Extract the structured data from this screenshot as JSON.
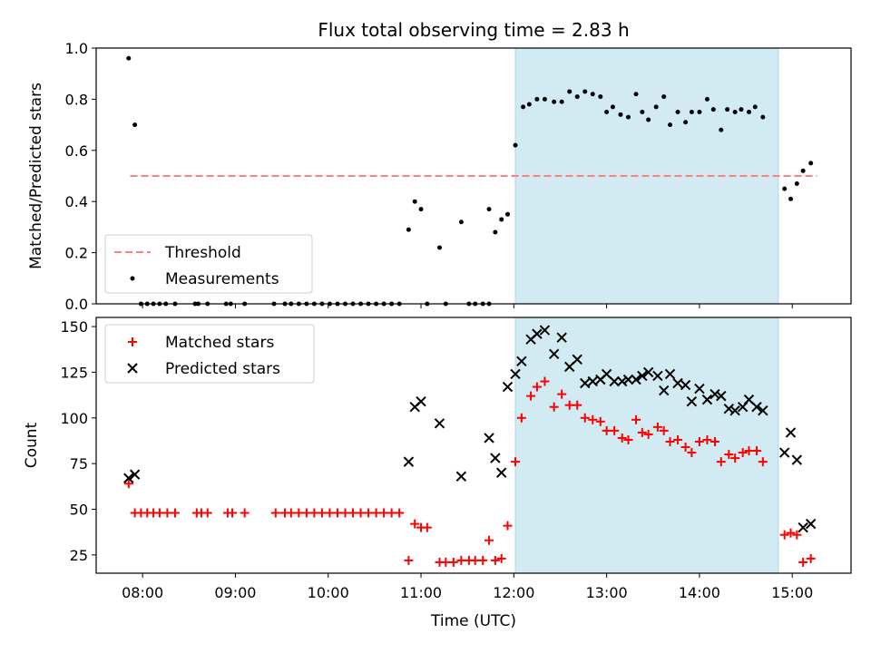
{
  "title": "Flux total observing time = 2.83 h",
  "xlabel": "Time (UTC)",
  "x_ticks": [
    "08:00",
    "09:00",
    "10:00",
    "11:00",
    "12:00",
    "13:00",
    "14:00",
    "15:00"
  ],
  "shaded_window": {
    "start": "12:01",
    "end": "14:51",
    "color": "#add8e6"
  },
  "chart_data": [
    {
      "type": "scatter",
      "ylabel": "Matched/Predicted stars",
      "ylim": [
        0,
        1.0
      ],
      "y_ticks": [
        "0.0",
        "0.2",
        "0.4",
        "0.6",
        "0.8",
        "1.0"
      ],
      "legend": {
        "position": "lower-left",
        "entries": [
          "Threshold",
          "Measurements"
        ]
      },
      "threshold": {
        "name": "Threshold",
        "value": 0.5,
        "x_start": "07:52",
        "x_end": "15:16",
        "color": "#ff7f7f",
        "style": "dashed"
      },
      "series": [
        {
          "name": "Measurements",
          "color": "#000000",
          "points": [
            [
              "07:51",
              0.96
            ],
            [
              "07:55",
              0.7
            ],
            [
              "07:59",
              0.0
            ],
            [
              "08:03",
              0.0
            ],
            [
              "08:07",
              0.0
            ],
            [
              "08:11",
              0.0
            ],
            [
              "08:15",
              0.0
            ],
            [
              "08:21",
              0.0
            ],
            [
              "08:34",
              0.0
            ],
            [
              "08:36",
              0.0
            ],
            [
              "08:42",
              0.0
            ],
            [
              "08:54",
              0.0
            ],
            [
              "08:57",
              0.0
            ],
            [
              "09:06",
              0.0
            ],
            [
              "09:25",
              0.0
            ],
            [
              "09:32",
              0.0
            ],
            [
              "09:36",
              0.0
            ],
            [
              "09:41",
              0.0
            ],
            [
              "09:46",
              0.0
            ],
            [
              "09:51",
              0.0
            ],
            [
              "09:56",
              0.0
            ],
            [
              "10:01",
              0.0
            ],
            [
              "10:06",
              0.0
            ],
            [
              "10:11",
              0.0
            ],
            [
              "10:16",
              0.0
            ],
            [
              "10:21",
              0.0
            ],
            [
              "10:26",
              0.0
            ],
            [
              "10:31",
              0.0
            ],
            [
              "10:36",
              0.0
            ],
            [
              "10:41",
              0.0
            ],
            [
              "10:46",
              0.0
            ],
            [
              "10:52",
              0.29
            ],
            [
              "10:56",
              0.4
            ],
            [
              "11:00",
              0.37
            ],
            [
              "11:04",
              0.0
            ],
            [
              "11:12",
              0.22
            ],
            [
              "11:16",
              0.0
            ],
            [
              "11:26",
              0.32
            ],
            [
              "11:31",
              0.0
            ],
            [
              "11:35",
              0.0
            ],
            [
              "11:40",
              0.0
            ],
            [
              "11:44",
              0.0
            ],
            [
              "11:44",
              0.37
            ],
            [
              "11:48",
              0.28
            ],
            [
              "11:52",
              0.33
            ],
            [
              "11:56",
              0.35
            ],
            [
              "12:01",
              0.62
            ],
            [
              "12:06",
              0.77
            ],
            [
              "12:10",
              0.78
            ],
            [
              "12:15",
              0.8
            ],
            [
              "12:20",
              0.8
            ],
            [
              "12:26",
              0.79
            ],
            [
              "12:31",
              0.79
            ],
            [
              "12:36",
              0.83
            ],
            [
              "12:41",
              0.81
            ],
            [
              "12:46",
              0.83
            ],
            [
              "12:51",
              0.82
            ],
            [
              "12:56",
              0.81
            ],
            [
              "13:00",
              0.75
            ],
            [
              "13:04",
              0.77
            ],
            [
              "13:09",
              0.74
            ],
            [
              "13:14",
              0.73
            ],
            [
              "13:19",
              0.82
            ],
            [
              "13:23",
              0.75
            ],
            [
              "13:27",
              0.72
            ],
            [
              "13:32",
              0.77
            ],
            [
              "13:37",
              0.81
            ],
            [
              "13:41",
              0.7
            ],
            [
              "13:46",
              0.75
            ],
            [
              "13:51",
              0.71
            ],
            [
              "13:55",
              0.75
            ],
            [
              "14:00",
              0.75
            ],
            [
              "14:05",
              0.8
            ],
            [
              "14:09",
              0.76
            ],
            [
              "14:14",
              0.68
            ],
            [
              "14:18",
              0.76
            ],
            [
              "14:23",
              0.75
            ],
            [
              "14:27",
              0.76
            ],
            [
              "14:32",
              0.75
            ],
            [
              "14:36",
              0.77
            ],
            [
              "14:41",
              0.73
            ],
            [
              "14:55",
              0.45
            ],
            [
              "14:59",
              0.41
            ],
            [
              "15:03",
              0.47
            ],
            [
              "15:07",
              0.52
            ],
            [
              "15:12",
              0.55
            ]
          ]
        }
      ]
    },
    {
      "type": "scatter",
      "ylabel": "Count",
      "ylim": [
        15,
        155
      ],
      "y_ticks": [
        "25",
        "50",
        "75",
        "100",
        "125",
        "150"
      ],
      "legend": {
        "position": "upper-left",
        "entries": [
          "Matched stars",
          "Predicted stars"
        ]
      },
      "series": [
        {
          "name": "Matched stars",
          "marker": "plus",
          "color": "#ff0000",
          "points": [
            [
              "07:51",
              64
            ],
            [
              "07:55",
              48
            ],
            [
              "07:59",
              48
            ],
            [
              "08:03",
              48
            ],
            [
              "08:07",
              48
            ],
            [
              "08:11",
              48
            ],
            [
              "08:16",
              48
            ],
            [
              "08:21",
              48
            ],
            [
              "08:35",
              48
            ],
            [
              "08:38",
              48
            ],
            [
              "08:42",
              48
            ],
            [
              "08:55",
              48
            ],
            [
              "08:58",
              48
            ],
            [
              "09:06",
              48
            ],
            [
              "09:26",
              48
            ],
            [
              "09:32",
              48
            ],
            [
              "09:36",
              48
            ],
            [
              "09:41",
              48
            ],
            [
              "09:46",
              48
            ],
            [
              "09:51",
              48
            ],
            [
              "09:56",
              48
            ],
            [
              "10:01",
              48
            ],
            [
              "10:06",
              48
            ],
            [
              "10:11",
              48
            ],
            [
              "10:16",
              48
            ],
            [
              "10:21",
              48
            ],
            [
              "10:26",
              48
            ],
            [
              "10:31",
              48
            ],
            [
              "10:36",
              48
            ],
            [
              "10:41",
              48
            ],
            [
              "10:46",
              48
            ],
            [
              "10:52",
              22
            ],
            [
              "10:56",
              42
            ],
            [
              "11:00",
              40
            ],
            [
              "11:04",
              40
            ],
            [
              "11:12",
              21
            ],
            [
              "11:16",
              21
            ],
            [
              "11:21",
              21
            ],
            [
              "11:26",
              22
            ],
            [
              "11:31",
              22
            ],
            [
              "11:35",
              22
            ],
            [
              "11:40",
              22
            ],
            [
              "11:44",
              33
            ],
            [
              "11:48",
              22
            ],
            [
              "11:52",
              23
            ],
            [
              "11:56",
              41
            ],
            [
              "12:01",
              76
            ],
            [
              "12:05",
              100
            ],
            [
              "12:11",
              112
            ],
            [
              "12:15",
              117
            ],
            [
              "12:20",
              120
            ],
            [
              "12:26",
              106
            ],
            [
              "12:31",
              113
            ],
            [
              "12:36",
              107
            ],
            [
              "12:41",
              107
            ],
            [
              "12:46",
              100
            ],
            [
              "12:51",
              99
            ],
            [
              "12:56",
              98
            ],
            [
              "13:00",
              93
            ],
            [
              "13:05",
              93
            ],
            [
              "13:10",
              89
            ],
            [
              "13:14",
              88
            ],
            [
              "13:19",
              99
            ],
            [
              "13:23",
              92
            ],
            [
              "13:27",
              91
            ],
            [
              "13:33",
              95
            ],
            [
              "13:37",
              93
            ],
            [
              "13:41",
              87
            ],
            [
              "13:46",
              88
            ],
            [
              "13:51",
              84
            ],
            [
              "13:55",
              81
            ],
            [
              "14:00",
              87
            ],
            [
              "14:05",
              88
            ],
            [
              "14:10",
              87
            ],
            [
              "14:14",
              76
            ],
            [
              "14:19",
              80
            ],
            [
              "14:23",
              78
            ],
            [
              "14:28",
              81
            ],
            [
              "14:32",
              82
            ],
            [
              "14:37",
              82
            ],
            [
              "14:41",
              76
            ],
            [
              "14:55",
              36
            ],
            [
              "14:59",
              37
            ],
            [
              "15:03",
              36
            ],
            [
              "15:07",
              21
            ],
            [
              "15:12",
              23
            ]
          ]
        },
        {
          "name": "Predicted stars",
          "marker": "x",
          "color": "#000000",
          "points": [
            [
              "07:51",
              67
            ],
            [
              "07:55",
              69
            ],
            [
              "10:52",
              76
            ],
            [
              "10:56",
              106
            ],
            [
              "11:00",
              109
            ],
            [
              "11:12",
              97
            ],
            [
              "11:26",
              68
            ],
            [
              "11:44",
              89
            ],
            [
              "11:48",
              78
            ],
            [
              "11:52",
              70
            ],
            [
              "11:56",
              117
            ],
            [
              "12:01",
              124
            ],
            [
              "12:05",
              131
            ],
            [
              "12:11",
              143
            ],
            [
              "12:15",
              146
            ],
            [
              "12:20",
              148
            ],
            [
              "12:26",
              135
            ],
            [
              "12:31",
              144
            ],
            [
              "12:36",
              128
            ],
            [
              "12:41",
              132
            ],
            [
              "12:46",
              119
            ],
            [
              "12:51",
              120
            ],
            [
              "12:56",
              121
            ],
            [
              "13:00",
              124
            ],
            [
              "13:05",
              120
            ],
            [
              "13:10",
              120
            ],
            [
              "13:14",
              121
            ],
            [
              "13:19",
              121
            ],
            [
              "13:23",
              123
            ],
            [
              "13:27",
              125
            ],
            [
              "13:33",
              123
            ],
            [
              "13:37",
              115
            ],
            [
              "13:41",
              124
            ],
            [
              "13:46",
              119
            ],
            [
              "13:51",
              118
            ],
            [
              "13:55",
              109
            ],
            [
              "14:00",
              116
            ],
            [
              "14:05",
              110
            ],
            [
              "14:10",
              113
            ],
            [
              "14:14",
              112
            ],
            [
              "14:19",
              105
            ],
            [
              "14:23",
              104
            ],
            [
              "14:28",
              106
            ],
            [
              "14:32",
              110
            ],
            [
              "14:37",
              106
            ],
            [
              "14:41",
              104
            ],
            [
              "14:55",
              81
            ],
            [
              "14:59",
              92
            ],
            [
              "15:03",
              77
            ],
            [
              "15:07",
              40
            ],
            [
              "15:12",
              42
            ]
          ]
        }
      ]
    }
  ]
}
